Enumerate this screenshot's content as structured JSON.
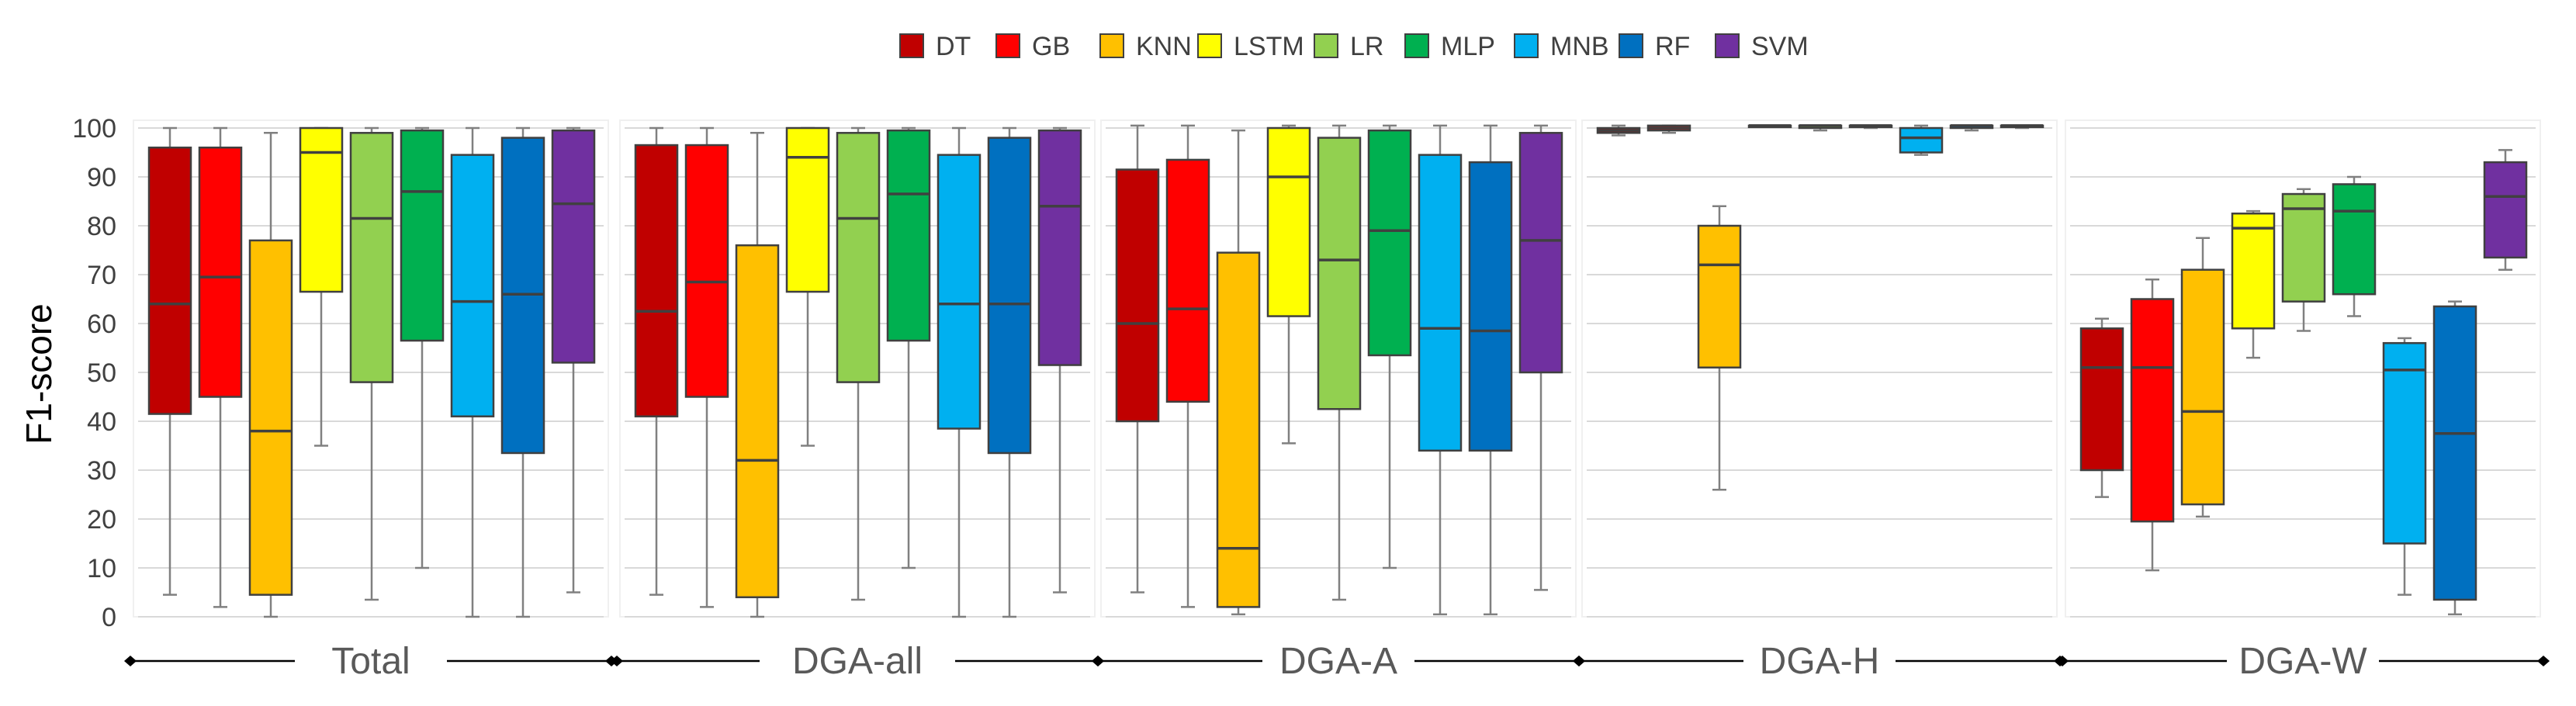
{
  "chart_data": {
    "type": "boxplot",
    "title": "",
    "ylabel": "F1-score",
    "ylim": [
      0,
      100
    ],
    "yticks": [
      "0",
      "10",
      "20",
      "30",
      "40",
      "50",
      "60",
      "70",
      "80",
      "90",
      "100"
    ],
    "legend_position": "top-center",
    "grid": true,
    "series": [
      {
        "name": "DT",
        "color": "#C00000"
      },
      {
        "name": "GB",
        "color": "#FF0000"
      },
      {
        "name": "KNN",
        "color": "#FFC000"
      },
      {
        "name": "LSTM",
        "color": "#FFFF00"
      },
      {
        "name": "LR",
        "color": "#92D050"
      },
      {
        "name": "MLP",
        "color": "#00B050"
      },
      {
        "name": "MNB",
        "color": "#00B0F0"
      },
      {
        "name": "RF",
        "color": "#0070C0"
      },
      {
        "name": "SVM",
        "color": "#7030A0"
      }
    ],
    "panels": [
      {
        "label": "Total",
        "boxes": [
          {
            "model": "DT",
            "min": 4.5,
            "q1": 41.5,
            "median": 64,
            "q3": 96,
            "max": 100
          },
          {
            "model": "GB",
            "min": 2,
            "q1": 45,
            "median": 69.5,
            "q3": 96,
            "max": 100
          },
          {
            "model": "KNN",
            "min": 0,
            "q1": 4.5,
            "median": 38,
            "q3": 77,
            "max": 99
          },
          {
            "model": "LSTM",
            "min": 35,
            "q1": 66.5,
            "median": 95,
            "q3": 100,
            "max": 100
          },
          {
            "model": "LR",
            "min": 3.5,
            "q1": 48,
            "median": 81.5,
            "q3": 99,
            "max": 100
          },
          {
            "model": "MLP",
            "min": 10,
            "q1": 56.5,
            "median": 87,
            "q3": 99.5,
            "max": 100
          },
          {
            "model": "MNB",
            "min": 0,
            "q1": 41,
            "median": 64.5,
            "q3": 94.5,
            "max": 100
          },
          {
            "model": "RF",
            "min": 0,
            "q1": 33.5,
            "median": 66,
            "q3": 98,
            "max": 100
          },
          {
            "model": "SVM",
            "min": 5,
            "q1": 52,
            "median": 84.5,
            "q3": 99.5,
            "max": 100
          }
        ]
      },
      {
        "label": "DGA-all",
        "boxes": [
          {
            "model": "DT",
            "min": 4.5,
            "q1": 41,
            "median": 62.5,
            "q3": 96.5,
            "max": 100
          },
          {
            "model": "GB",
            "min": 2,
            "q1": 45,
            "median": 68.5,
            "q3": 96.5,
            "max": 100
          },
          {
            "model": "KNN",
            "min": 0,
            "q1": 4,
            "median": 32,
            "q3": 76,
            "max": 99
          },
          {
            "model": "LSTM",
            "min": 35,
            "q1": 66.5,
            "median": 94,
            "q3": 100,
            "max": 100
          },
          {
            "model": "LR",
            "min": 3.5,
            "q1": 48,
            "median": 81.5,
            "q3": 99,
            "max": 100
          },
          {
            "model": "MLP",
            "min": 10,
            "q1": 56.5,
            "median": 86.5,
            "q3": 99.5,
            "max": 100
          },
          {
            "model": "MNB",
            "min": 0,
            "q1": 38.5,
            "median": 64,
            "q3": 94.5,
            "max": 100
          },
          {
            "model": "RF",
            "min": 0,
            "q1": 33.5,
            "median": 64,
            "q3": 98,
            "max": 100
          },
          {
            "model": "SVM",
            "min": 5,
            "q1": 51.5,
            "median": 84,
            "q3": 99.5,
            "max": 100
          }
        ]
      },
      {
        "label": "DGA-A",
        "boxes": [
          {
            "model": "DT",
            "min": 5,
            "q1": 40,
            "median": 60,
            "q3": 91.5,
            "max": 100.5
          },
          {
            "model": "GB",
            "min": 2,
            "q1": 44,
            "median": 63,
            "q3": 93.5,
            "max": 100.5
          },
          {
            "model": "KNN",
            "min": 0.5,
            "q1": 2,
            "median": 14,
            "q3": 74.5,
            "max": 99.5
          },
          {
            "model": "LSTM",
            "min": 35.5,
            "q1": 61.5,
            "median": 90,
            "q3": 100,
            "max": 100.5
          },
          {
            "model": "LR",
            "min": 3.5,
            "q1": 42.5,
            "median": 73,
            "q3": 98,
            "max": 100.5
          },
          {
            "model": "MLP",
            "min": 10,
            "q1": 53.5,
            "median": 79,
            "q3": 99.5,
            "max": 100.5
          },
          {
            "model": "MNB",
            "min": 0.5,
            "q1": 34,
            "median": 59,
            "q3": 94.5,
            "max": 100.5
          },
          {
            "model": "RF",
            "min": 0.5,
            "q1": 34,
            "median": 58.5,
            "q3": 93,
            "max": 100.5
          },
          {
            "model": "SVM",
            "min": 5.5,
            "q1": 50,
            "median": 77,
            "q3": 99,
            "max": 100.5
          }
        ]
      },
      {
        "label": "DGA-H",
        "boxes": [
          {
            "model": "DT",
            "min": 98.5,
            "q1": 99,
            "median": 99.5,
            "q3": 100,
            "max": 100.5
          },
          {
            "model": "GB",
            "min": 99,
            "q1": 99.5,
            "median": 100,
            "q3": 100.5,
            "max": 100.5
          },
          {
            "model": "KNN",
            "min": 26,
            "q1": 51,
            "median": 72,
            "q3": 80,
            "max": 84
          },
          {
            "model": "LSTM",
            "min": 100.5,
            "q1": 100.5,
            "median": 100.5,
            "q3": 100.5,
            "max": 100.5
          },
          {
            "model": "LR",
            "min": 99.5,
            "q1": 100,
            "median": 100.5,
            "q3": 100.5,
            "max": 100.5
          },
          {
            "model": "MLP",
            "min": 100,
            "q1": 100.5,
            "median": 100.5,
            "q3": 100.5,
            "max": 100.5
          },
          {
            "model": "MNB",
            "min": 94.5,
            "q1": 95,
            "median": 98,
            "q3": 100,
            "max": 100.5
          },
          {
            "model": "RF",
            "min": 99.5,
            "q1": 100,
            "median": 100.5,
            "q3": 100.5,
            "max": 100.5
          },
          {
            "model": "SVM",
            "min": 100,
            "q1": 100.5,
            "median": 100.5,
            "q3": 100.5,
            "max": 100.5
          }
        ]
      },
      {
        "label": "DGA-W",
        "boxes": [
          {
            "model": "DT",
            "min": 24.5,
            "q1": 30,
            "median": 51,
            "q3": 59,
            "max": 61
          },
          {
            "model": "GB",
            "min": 9.5,
            "q1": 19.5,
            "median": 51,
            "q3": 65,
            "max": 69
          },
          {
            "model": "KNN",
            "min": 20.5,
            "q1": 23,
            "median": 42,
            "q3": 71,
            "max": 77.5
          },
          {
            "model": "LSTM",
            "min": 53,
            "q1": 59,
            "median": 79.5,
            "q3": 82.5,
            "max": 83
          },
          {
            "model": "LR",
            "min": 58.5,
            "q1": 64.5,
            "median": 83.5,
            "q3": 86.5,
            "max": 87.5
          },
          {
            "model": "MLP",
            "min": 61.5,
            "q1": 66,
            "median": 83,
            "q3": 88.5,
            "max": 90
          },
          {
            "model": "MNB",
            "min": 4.5,
            "q1": 15,
            "median": 50.5,
            "q3": 56,
            "max": 57
          },
          {
            "model": "RF",
            "min": 0.5,
            "q1": 3.5,
            "median": 37.5,
            "q3": 63.5,
            "max": 64.5
          },
          {
            "model": "SVM",
            "min": 71,
            "q1": 73.5,
            "median": 86,
            "q3": 93,
            "max": 95.5
          }
        ]
      }
    ]
  }
}
